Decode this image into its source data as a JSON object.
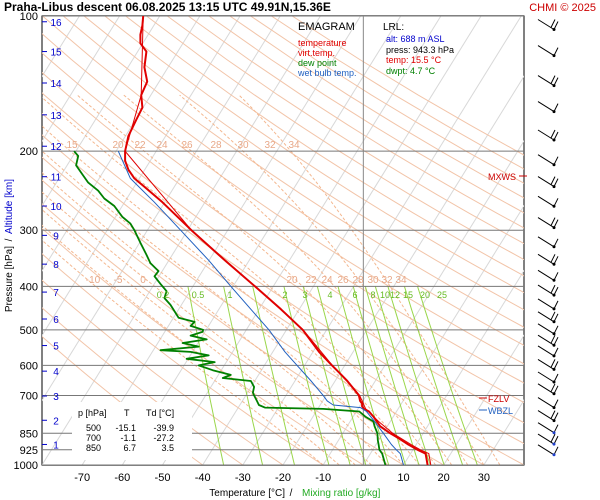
{
  "header": {
    "title": "Praha-Libus   descent   06.08.2025 13:15 UTC  49.91N,15.36E",
    "credit": "CHMI © 2025"
  },
  "legend": {
    "heading": "EMAGRAM",
    "items": [
      {
        "label": "temperature",
        "color": "#e00000"
      },
      {
        "label": "virt.temp.",
        "color": "#e00000"
      },
      {
        "label": "dew point",
        "color": "#008000"
      },
      {
        "label": "wet bulb temp.",
        "color": "#2060c0"
      }
    ]
  },
  "lrl": {
    "heading": "LRL:",
    "rows": [
      {
        "text": "alt: 688 m ASL",
        "color": "#0000cc"
      },
      {
        "text": "press: 943.3 hPa",
        "color": "#000000"
      },
      {
        "text": "temp: 15.5 °C",
        "color": "#e00000"
      },
      {
        "text": "dwpt: 4.7 °C",
        "color": "#008000"
      }
    ]
  },
  "level_table": {
    "headers": [
      "p [hPa]",
      "T",
      "Td [°C]"
    ],
    "rows": [
      [
        "500",
        "-15.1",
        "-39.9"
      ],
      [
        "700",
        "-1.1",
        "-27.2"
      ],
      [
        "850",
        "6.7",
        "3.5"
      ]
    ]
  },
  "markers": {
    "mxws": "MXWS",
    "fzlv": "FZLV",
    "wbzl": "WBZL"
  },
  "chart_data": {
    "type": "line",
    "title": "Praha-Libus   descent   06.08.2025 13:15 UTC  49.91N,15.36E",
    "xlabel": "Temperature [°C]",
    "xlabel_sep": "/",
    "xlabel2": "Mixing ratio [g/kg]",
    "ylabel": "Pressure [hPa]",
    "ylabel_sep": "/",
    "ylabel2": "Altitude [km]",
    "xlim": [
      -80,
      40
    ],
    "ylim": [
      1000,
      100
    ],
    "y_scale": "log",
    "x_ticks": [
      -70,
      -60,
      -50,
      -40,
      -30,
      -20,
      -10,
      0,
      10,
      20,
      30
    ],
    "y_ticks": [
      100,
      200,
      300,
      400,
      500,
      600,
      700,
      850,
      925,
      1000
    ],
    "altitude_ticks": [
      {
        "km": "1",
        "p": 900
      },
      {
        "km": "2",
        "p": 795
      },
      {
        "km": "3",
        "p": 702
      },
      {
        "km": "4",
        "p": 618
      },
      {
        "km": "5",
        "p": 542
      },
      {
        "km": "6",
        "p": 473
      },
      {
        "km": "7",
        "p": 412
      },
      {
        "km": "8",
        "p": 357
      },
      {
        "km": "9",
        "p": 308
      },
      {
        "km": "10",
        "p": 265
      },
      {
        "km": "11",
        "p": 228
      },
      {
        "km": "12",
        "p": 195
      },
      {
        "km": "13",
        "p": 166
      },
      {
        "km": "14",
        "p": 141
      },
      {
        "km": "15",
        "p": 120
      },
      {
        "km": "16",
        "p": 103
      }
    ],
    "mixing_ratio_labels": [
      "0.2",
      "0.5",
      "1",
      "2",
      "3",
      "4",
      "6",
      "8",
      "10",
      "12",
      "15",
      "20",
      "25"
    ],
    "dry_adiabat_labels_200": [
      "15",
      "20",
      "22",
      "24",
      "26",
      "28",
      "30",
      "32",
      "34"
    ],
    "dry_adiabat_labels_400": [
      "-10",
      "-5",
      "0"
    ],
    "moist_adiabat_labels_400": [
      "20",
      "22",
      "24",
      "26",
      "28",
      "30",
      "32",
      "34"
    ],
    "series": [
      {
        "name": "temperature",
        "color": "#e00000",
        "points": [
          [
            1000,
            16.0
          ],
          [
            943,
            15.5
          ],
          [
            925,
            13.5
          ],
          [
            900,
            11.2
          ],
          [
            870,
            8.6
          ],
          [
            850,
            6.7
          ],
          [
            820,
            4.2
          ],
          [
            780,
            2.5
          ],
          [
            760,
            1.4
          ],
          [
            750,
            0.2
          ],
          [
            740,
            -0.3
          ],
          [
            730,
            -0.3
          ],
          [
            720,
            -0.8
          ],
          [
            700,
            -1.1
          ],
          [
            650,
            -4.0
          ],
          [
            620,
            -6.2
          ],
          [
            600,
            -7.8
          ],
          [
            560,
            -11.0
          ],
          [
            530,
            -13.0
          ],
          [
            500,
            -15.1
          ],
          [
            450,
            -20.5
          ],
          [
            400,
            -27.0
          ],
          [
            350,
            -34.5
          ],
          [
            300,
            -42.8
          ],
          [
            260,
            -50.0
          ],
          [
            240,
            -54.5
          ],
          [
            230,
            -57.0
          ],
          [
            220,
            -58.5
          ],
          [
            210,
            -59.3
          ],
          [
            200,
            -59.3
          ],
          [
            185,
            -58.5
          ],
          [
            170,
            -56.5
          ],
          [
            160,
            -55.0
          ],
          [
            150,
            -55.3
          ],
          [
            140,
            -53.8
          ],
          [
            130,
            -54.5
          ],
          [
            120,
            -54.0
          ],
          [
            115,
            -55.5
          ],
          [
            110,
            -55.5
          ],
          [
            105,
            -55.0
          ],
          [
            100,
            -54.8
          ]
        ]
      },
      {
        "name": "virt.temp.",
        "color": "#e00000",
        "points": [
          [
            1000,
            16.8
          ],
          [
            943,
            16.3
          ],
          [
            925,
            14.2
          ],
          [
            900,
            11.9
          ],
          [
            850,
            7.3
          ],
          [
            800,
            3.8
          ],
          [
            750,
            0.6
          ],
          [
            700,
            -0.9
          ],
          [
            650,
            -3.9
          ],
          [
            600,
            -7.7
          ],
          [
            500,
            -15.0
          ],
          [
            400,
            -27.0
          ],
          [
            300,
            -42.8
          ],
          [
            200,
            -59.3
          ],
          [
            150,
            -55.3
          ],
          [
            100,
            -54.8
          ]
        ]
      },
      {
        "name": "dew point",
        "color": "#008000",
        "points": [
          [
            1000,
            5.5
          ],
          [
            943,
            4.7
          ],
          [
            925,
            4.0
          ],
          [
            900,
            3.8
          ],
          [
            880,
            3.6
          ],
          [
            850,
            3.5
          ],
          [
            820,
            2.8
          ],
          [
            800,
            2.5
          ],
          [
            780,
            0.5
          ],
          [
            760,
            -1.0
          ],
          [
            750,
            -10.0
          ],
          [
            745,
            -24.5
          ],
          [
            735,
            -26.0
          ],
          [
            720,
            -26.5
          ],
          [
            700,
            -27.2
          ],
          [
            690,
            -27.5
          ],
          [
            670,
            -27.2
          ],
          [
            650,
            -28.0
          ],
          [
            640,
            -35.0
          ],
          [
            630,
            -33.0
          ],
          [
            615,
            -37.5
          ],
          [
            600,
            -41.0
          ],
          [
            590,
            -37.0
          ],
          [
            580,
            -44.0
          ],
          [
            570,
            -38.5
          ],
          [
            560,
            -43.0
          ],
          [
            555,
            -50.5
          ],
          [
            545,
            -41.0
          ],
          [
            535,
            -45.0
          ],
          [
            525,
            -39.0
          ],
          [
            515,
            -43.0
          ],
          [
            505,
            -40.0
          ],
          [
            500,
            -39.9
          ],
          [
            490,
            -43.0
          ],
          [
            480,
            -42.0
          ],
          [
            470,
            -46.0
          ],
          [
            455,
            -47.0
          ],
          [
            440,
            -48.0
          ],
          [
            425,
            -49.5
          ],
          [
            410,
            -49.0
          ],
          [
            395,
            -50.5
          ],
          [
            380,
            -52.0
          ],
          [
            370,
            -51.0
          ],
          [
            355,
            -53.0
          ],
          [
            340,
            -54.0
          ],
          [
            320,
            -55.5
          ],
          [
            300,
            -57.0
          ],
          [
            290,
            -58.0
          ],
          [
            280,
            -60.0
          ],
          [
            265,
            -62.0
          ],
          [
            255,
            -64.5
          ],
          [
            245,
            -66.0
          ],
          [
            235,
            -68.5
          ],
          [
            225,
            -70.0
          ],
          [
            215,
            -71.5
          ],
          [
            205,
            -71.0
          ],
          [
            200,
            -72.0
          ]
        ]
      },
      {
        "name": "wet bulb temp.",
        "color": "#2060c0",
        "points": [
          [
            1000,
            10.0
          ],
          [
            943,
            9.2
          ],
          [
            925,
            8.2
          ],
          [
            900,
            7.0
          ],
          [
            850,
            5.0
          ],
          [
            800,
            2.8
          ],
          [
            760,
            0.8
          ],
          [
            745,
            -0.7
          ],
          [
            735,
            -7.5
          ],
          [
            720,
            -9.0
          ],
          [
            700,
            -10.0
          ],
          [
            650,
            -13.0
          ],
          [
            600,
            -16.5
          ],
          [
            560,
            -19.5
          ],
          [
            500,
            -23.5
          ],
          [
            450,
            -28.0
          ],
          [
            400,
            -33.0
          ],
          [
            350,
            -38.5
          ],
          [
            300,
            -45.5
          ],
          [
            260,
            -52.0
          ],
          [
            230,
            -58.0
          ],
          [
            200,
            -61.0
          ]
        ]
      }
    ]
  }
}
